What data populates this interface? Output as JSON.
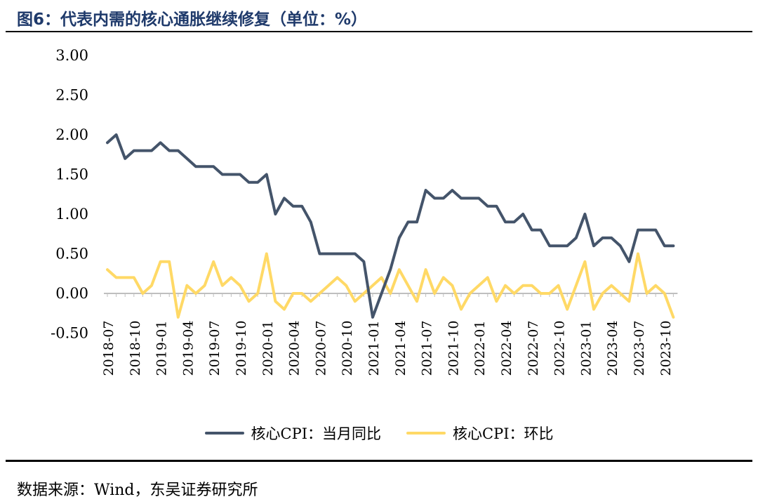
{
  "header": {
    "title": "图6：代表内需的核心通胀继续修复（单位：%）"
  },
  "footer": {
    "source": "数据来源：Wind，东吴证券研究所"
  },
  "colors": {
    "yoy": "#44546a",
    "mom": "#ffd966",
    "axis": "#bfbfbf"
  },
  "chart_data": {
    "type": "line",
    "title": "代表内需的核心通胀继续修复（单位：%）",
    "ylim": [
      -0.5,
      3.0
    ],
    "yticks": [
      "-0.50",
      "0.00",
      "0.50",
      "1.00",
      "1.50",
      "2.00",
      "2.50",
      "3.00"
    ],
    "xtick_labels": [
      "2018-07",
      "2018-10",
      "2019-01",
      "2019-04",
      "2019-07",
      "2019-10",
      "2020-01",
      "2020-04",
      "2020-07",
      "2020-10",
      "2021-01",
      "2021-04",
      "2021-07",
      "2021-10",
      "2022-01",
      "2022-04",
      "2022-07",
      "2022-10",
      "2023-01",
      "2023-04",
      "2023-07",
      "2023-10"
    ],
    "x": [
      "2018-07",
      "2018-08",
      "2018-09",
      "2018-10",
      "2018-11",
      "2018-12",
      "2019-01",
      "2019-02",
      "2019-03",
      "2019-04",
      "2019-05",
      "2019-06",
      "2019-07",
      "2019-08",
      "2019-09",
      "2019-10",
      "2019-11",
      "2019-12",
      "2020-01",
      "2020-02",
      "2020-03",
      "2020-04",
      "2020-05",
      "2020-06",
      "2020-07",
      "2020-08",
      "2020-09",
      "2020-10",
      "2020-11",
      "2020-12",
      "2021-01",
      "2021-02",
      "2021-03",
      "2021-04",
      "2021-05",
      "2021-06",
      "2021-07",
      "2021-08",
      "2021-09",
      "2021-10",
      "2021-11",
      "2021-12",
      "2022-01",
      "2022-02",
      "2022-03",
      "2022-04",
      "2022-05",
      "2022-06",
      "2022-07",
      "2022-08",
      "2022-09",
      "2022-10",
      "2022-11",
      "2022-12",
      "2023-01",
      "2023-02",
      "2023-03",
      "2023-04",
      "2023-05",
      "2023-06",
      "2023-07",
      "2023-08",
      "2023-09",
      "2023-10",
      "2023-11"
    ],
    "series": [
      {
        "name": "核心CPI：当月同比",
        "color": "#44546a",
        "values": [
          1.9,
          2.0,
          1.7,
          1.8,
          1.8,
          1.8,
          1.9,
          1.8,
          1.8,
          1.7,
          1.6,
          1.6,
          1.6,
          1.5,
          1.5,
          1.5,
          1.4,
          1.4,
          1.5,
          1.0,
          1.2,
          1.1,
          1.1,
          0.9,
          0.5,
          0.5,
          0.5,
          0.5,
          0.5,
          0.4,
          -0.3,
          0.0,
          0.3,
          0.7,
          0.9,
          0.9,
          1.3,
          1.2,
          1.2,
          1.3,
          1.2,
          1.2,
          1.2,
          1.1,
          1.1,
          0.9,
          0.9,
          1.0,
          0.8,
          0.8,
          0.6,
          0.6,
          0.6,
          0.7,
          1.0,
          0.6,
          0.7,
          0.7,
          0.6,
          0.4,
          0.8,
          0.8,
          0.8,
          0.6,
          0.6
        ]
      },
      {
        "name": "核心CPI：环比",
        "color": "#ffd966",
        "values": [
          0.3,
          0.2,
          0.2,
          0.2,
          0.0,
          0.1,
          0.4,
          0.4,
          -0.3,
          0.1,
          0.0,
          0.1,
          0.4,
          0.1,
          0.2,
          0.1,
          -0.1,
          0.0,
          0.5,
          -0.1,
          -0.2,
          0.0,
          0.0,
          -0.1,
          0.0,
          0.1,
          0.2,
          0.1,
          -0.1,
          0.0,
          0.1,
          0.2,
          0.0,
          0.3,
          0.1,
          -0.1,
          0.3,
          0.0,
          0.2,
          0.1,
          -0.2,
          0.0,
          0.1,
          0.2,
          -0.1,
          0.1,
          0.0,
          0.1,
          0.1,
          0.0,
          0.0,
          0.1,
          -0.2,
          0.1,
          0.4,
          -0.2,
          0.0,
          0.1,
          0.0,
          -0.1,
          0.5,
          0.0,
          0.1,
          0.0,
          -0.3
        ]
      }
    ],
    "legend_position": "bottom",
    "grid": false
  }
}
